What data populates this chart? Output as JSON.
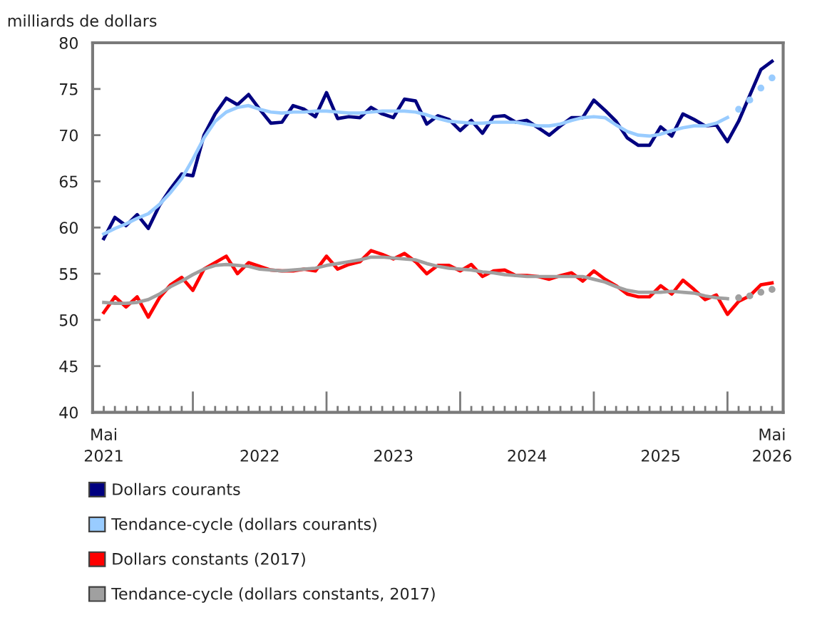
{
  "chart_data": {
    "type": "line",
    "ylabel": "milliards de dollars",
    "x": [
      "2021-05",
      "2021-06",
      "2021-07",
      "2021-08",
      "2021-09",
      "2021-10",
      "2021-11",
      "2021-12",
      "2022-01",
      "2022-02",
      "2022-03",
      "2022-04",
      "2022-05",
      "2022-06",
      "2022-07",
      "2022-08",
      "2022-09",
      "2022-10",
      "2022-11",
      "2022-12",
      "2023-01",
      "2023-02",
      "2023-03",
      "2023-04",
      "2023-05",
      "2023-06",
      "2023-07",
      "2023-08",
      "2023-09",
      "2023-10",
      "2023-11",
      "2023-12",
      "2024-01",
      "2024-02",
      "2024-03",
      "2024-04",
      "2024-05",
      "2024-06",
      "2024-07",
      "2024-08",
      "2024-09",
      "2024-10",
      "2024-11",
      "2024-12",
      "2025-01",
      "2025-02",
      "2025-03",
      "2025-04",
      "2025-05",
      "2025-06",
      "2025-07",
      "2025-08",
      "2025-09",
      "2025-10",
      "2025-11",
      "2025-12",
      "2026-01",
      "2026-02",
      "2026-03",
      "2026-04",
      "2026-05"
    ],
    "series": [
      {
        "name": "Dollars courants",
        "color": "#000080",
        "values": [
          58.8,
          61.1,
          60.2,
          61.4,
          59.9,
          62.4,
          64.2,
          65.8,
          65.6,
          70.0,
          72.3,
          74.0,
          73.3,
          74.4,
          72.8,
          71.3,
          71.4,
          73.2,
          72.8,
          72.0,
          74.6,
          71.8,
          72.0,
          71.9,
          73.0,
          72.3,
          71.9,
          73.9,
          73.7,
          71.2,
          72.1,
          71.7,
          70.5,
          71.6,
          70.2,
          72.0,
          72.1,
          71.4,
          71.6,
          70.8,
          70.0,
          71.0,
          71.9,
          71.9,
          73.8,
          72.7,
          71.5,
          69.7,
          68.9,
          68.9,
          70.9,
          69.9,
          72.3,
          71.7,
          71.0,
          71.1,
          69.3,
          71.5,
          74.3,
          77.1,
          78.0
        ]
      },
      {
        "name": "Tendance-cycle (dollars courants)",
        "color": "#99ccff",
        "values": [
          59.3,
          59.9,
          60.4,
          61.0,
          61.5,
          62.5,
          63.8,
          65.3,
          67.4,
          69.7,
          71.5,
          72.5,
          73.0,
          73.2,
          72.8,
          72.5,
          72.4,
          72.5,
          72.5,
          72.6,
          72.6,
          72.5,
          72.4,
          72.4,
          72.5,
          72.6,
          72.6,
          72.6,
          72.5,
          72.2,
          71.8,
          71.5,
          71.4,
          71.3,
          71.3,
          71.4,
          71.4,
          71.4,
          71.2,
          71.0,
          71.0,
          71.2,
          71.6,
          71.9,
          72.0,
          71.9,
          71.1,
          70.4,
          70.0,
          69.9,
          70.1,
          70.5,
          70.8,
          71.0,
          71.0,
          71.3,
          71.9,
          null,
          null,
          null,
          null
        ]
      },
      {
        "type": "scatter",
        "marker": "circle",
        "color": "#99ccff",
        "x": [
          "2026-02",
          "2026-03",
          "2026-04",
          "2026-05"
        ],
        "values": [
          72.8,
          73.8,
          75.1,
          76.2
        ]
      },
      {
        "name": "Dollars constants (2017)",
        "color": "#ff0000",
        "values": [
          50.8,
          52.5,
          51.4,
          52.5,
          50.3,
          52.4,
          53.8,
          54.6,
          53.2,
          55.5,
          56.2,
          56.9,
          55.0,
          56.2,
          55.8,
          55.4,
          55.3,
          55.3,
          55.5,
          55.3,
          56.9,
          55.5,
          56.0,
          56.3,
          57.5,
          57.1,
          56.6,
          57.2,
          56.3,
          55.0,
          55.9,
          55.9,
          55.3,
          56.0,
          54.7,
          55.3,
          55.4,
          54.8,
          54.8,
          54.7,
          54.4,
          54.8,
          55.1,
          54.2,
          55.3,
          54.4,
          53.7,
          52.8,
          52.5,
          52.5,
          53.7,
          52.8,
          54.3,
          53.3,
          52.2,
          52.7,
          50.6,
          52.0,
          52.6,
          53.8,
          54.0
        ]
      },
      {
        "name": "Tendance-cycle (dollars constants, 2017)",
        "color": "#a0a0a0",
        "values": [
          51.9,
          51.8,
          51.8,
          51.9,
          52.2,
          52.8,
          53.6,
          54.2,
          54.9,
          55.5,
          55.9,
          56.0,
          55.9,
          55.8,
          55.5,
          55.4,
          55.3,
          55.4,
          55.5,
          55.6,
          55.9,
          56.1,
          56.3,
          56.5,
          56.8,
          56.8,
          56.7,
          56.6,
          56.5,
          56.1,
          55.8,
          55.6,
          55.5,
          55.4,
          55.2,
          55.1,
          54.9,
          54.8,
          54.7,
          54.7,
          54.7,
          54.7,
          54.7,
          54.7,
          54.4,
          54.1,
          53.6,
          53.2,
          53.0,
          53.0,
          53.0,
          53.1,
          53.0,
          52.9,
          52.6,
          52.4,
          52.3,
          null,
          null,
          null,
          null
        ]
      },
      {
        "type": "scatter",
        "marker": "circle",
        "color": "#a0a0a0",
        "x": [
          "2026-02",
          "2026-03",
          "2026-04",
          "2026-05"
        ],
        "values": [
          52.4,
          52.6,
          53.0,
          53.3
        ]
      }
    ],
    "xlim": [
      "2021-04",
      "2026-06"
    ],
    "xticks": [
      {
        "value": "2021-05",
        "label": "Mai\n2021"
      },
      {
        "value": "2021-06",
        "label": null
      },
      {
        "value": "2021-07",
        "label": null
      },
      {
        "value": "2021-08",
        "label": null
      },
      {
        "value": "2021-09",
        "label": null
      },
      {
        "value": "2021-10",
        "label": null
      },
      {
        "value": "2021-11",
        "label": null
      },
      {
        "value": "2021-12",
        "label": null
      },
      {
        "value": "2022-01",
        "label": null
      },
      {
        "value": "2022-02",
        "label": null
      },
      {
        "value": "2022-03",
        "label": null
      },
      {
        "value": "2022-04",
        "label": null
      },
      {
        "value": "2022-05",
        "label": null
      },
      {
        "value": "2022-06",
        "label": null
      },
      {
        "value": "2022-07",
        "label": "\n2022"
      },
      {
        "value": "2022-08",
        "label": null
      },
      {
        "value": "2022-09",
        "label": null
      },
      {
        "value": "2022-10",
        "label": null
      },
      {
        "value": "2022-11",
        "label": null
      },
      {
        "value": "2022-12",
        "label": null
      },
      {
        "value": "2023-01",
        "label": null
      },
      {
        "value": "2023-02",
        "label": null
      },
      {
        "value": "2023-03",
        "label": null
      },
      {
        "value": "2023-04",
        "label": null
      },
      {
        "value": "2023-05",
        "label": null
      },
      {
        "value": "2023-06",
        "label": null
      },
      {
        "value": "2023-07",
        "label": "\n2023"
      },
      {
        "value": "2023-08",
        "label": null
      },
      {
        "value": "2023-09",
        "label": null
      },
      {
        "value": "2023-10",
        "label": null
      },
      {
        "value": "2023-11",
        "label": null
      },
      {
        "value": "2023-12",
        "label": null
      },
      {
        "value": "2024-01",
        "label": null
      },
      {
        "value": "2024-02",
        "label": null
      },
      {
        "value": "2024-03",
        "label": null
      },
      {
        "value": "2024-04",
        "label": null
      },
      {
        "value": "2024-05",
        "label": null
      },
      {
        "value": "2024-06",
        "label": null
      },
      {
        "value": "2024-07",
        "label": "\n2024"
      },
      {
        "value": "2024-08",
        "label": null
      },
      {
        "value": "2024-09",
        "label": null
      },
      {
        "value": "2024-10",
        "label": null
      },
      {
        "value": "2024-11",
        "label": null
      },
      {
        "value": "2024-12",
        "label": null
      },
      {
        "value": "2025-01",
        "label": null
      },
      {
        "value": "2025-02",
        "label": null
      },
      {
        "value": "2025-03",
        "label": null
      },
      {
        "value": "2025-04",
        "label": null
      },
      {
        "value": "2025-05",
        "label": null
      },
      {
        "value": "2025-06",
        "label": null
      },
      {
        "value": "2025-07",
        "label": "\n2025"
      },
      {
        "value": "2025-08",
        "label": null
      },
      {
        "value": "2025-09",
        "label": null
      },
      {
        "value": "2025-10",
        "label": null
      },
      {
        "value": "2025-11",
        "label": null
      },
      {
        "value": "2025-12",
        "label": null
      },
      {
        "value": "2026-01",
        "label": null
      },
      {
        "value": "2026-02",
        "label": null
      },
      {
        "value": "2026-03",
        "label": null
      },
      {
        "value": "2026-04",
        "label": null
      },
      {
        "value": "2026-05",
        "label": "Mai\n2026"
      }
    ],
    "ylim": [
      40,
      80
    ],
    "yticks": [
      40,
      45,
      50,
      55,
      60,
      65,
      70,
      75,
      80
    ],
    "legend": "bottom"
  }
}
